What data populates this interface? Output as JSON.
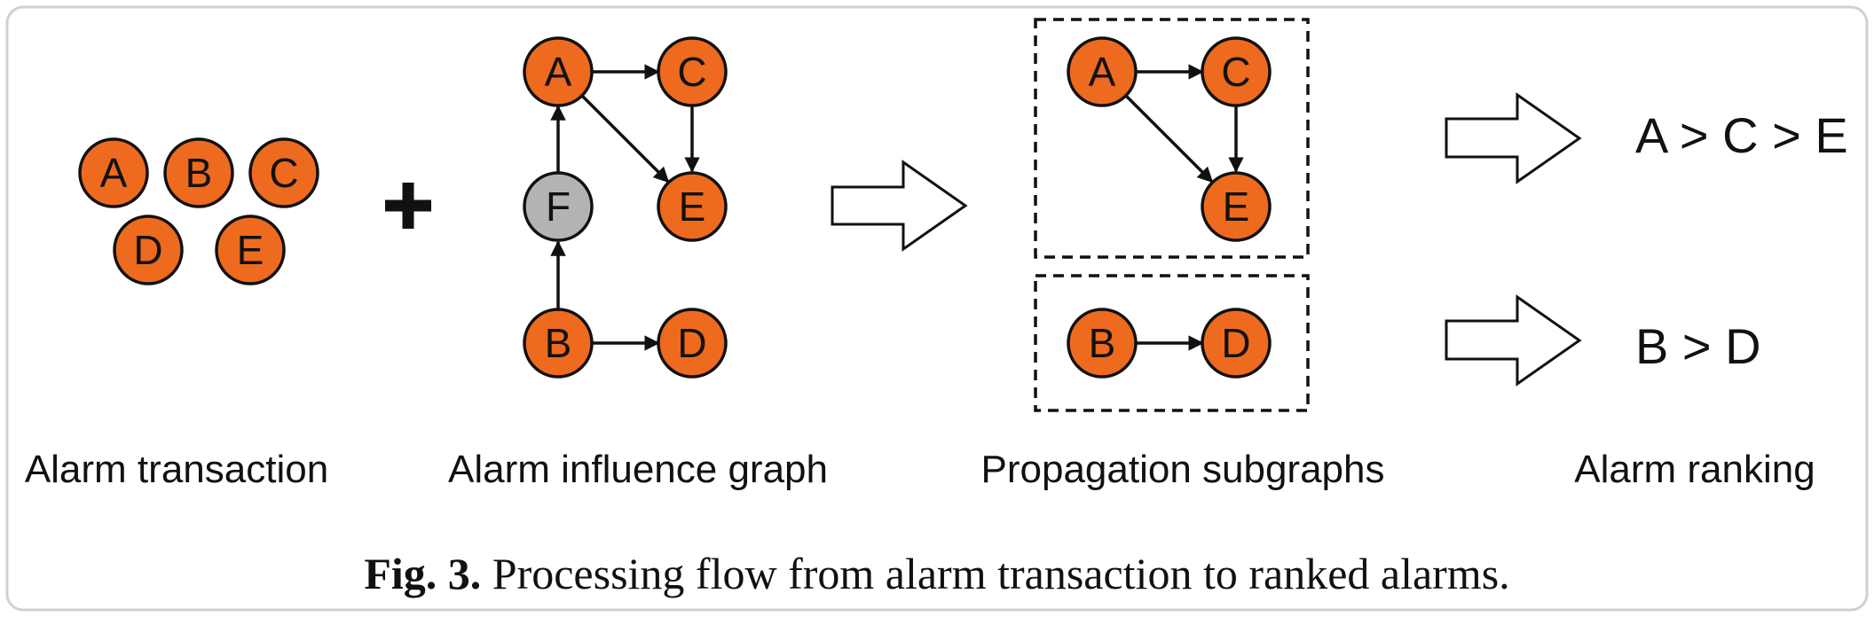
{
  "nodes": {
    "a": "A",
    "b": "B",
    "c": "C",
    "d": "D",
    "e": "E",
    "f": "F"
  },
  "plus_sign": "+",
  "labels": {
    "transaction": "Alarm transaction",
    "influence_graph": "Alarm influence graph",
    "subgraphs": "Propagation subgraphs",
    "ranking": "Alarm ranking"
  },
  "rankings": {
    "first": "A > C > E",
    "second": "B > D"
  },
  "caption": {
    "prefix": "Fig. 3.",
    "text": " Processing flow from alarm transaction to ranked alarms."
  },
  "colors": {
    "alarm_node": "#ee6a1e",
    "intermediate_node": "#b3b3b3"
  }
}
